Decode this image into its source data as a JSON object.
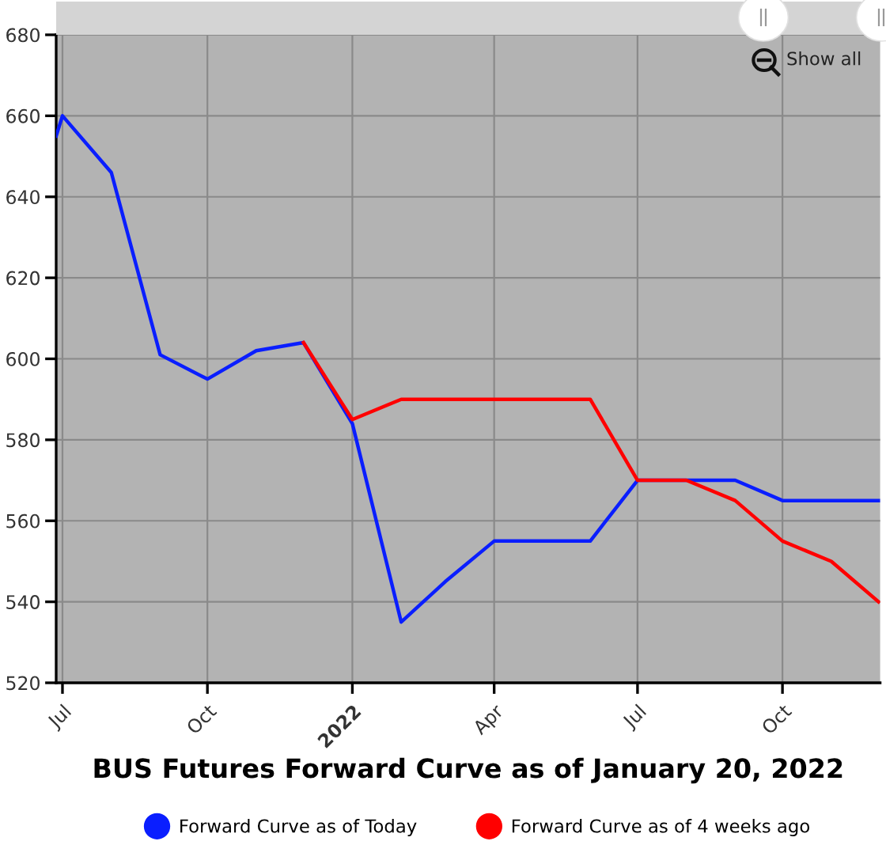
{
  "chart_data": {
    "type": "line",
    "title": "BUS Futures Forward Curve as of January 20, 2022",
    "annotations": [
      "Show all"
    ],
    "series": [
      {
        "name": "Forward Curve as of Today",
        "color": "#0a1eff",
        "x": [
          "2021-06-27",
          "2021-07-01",
          "2021-08-01",
          "2021-09-01",
          "2021-10-01",
          "2021-11-01",
          "2021-12-01",
          "2022-01-01",
          "2022-02-01",
          "2022-03-01",
          "2022-04-01",
          "2022-05-01",
          "2022-06-01",
          "2022-07-01",
          "2022-08-01",
          "2022-09-01",
          "2022-10-01",
          "2022-11-01",
          "2022-12-01"
        ],
        "values": [
          655,
          660,
          646,
          601,
          595,
          602,
          604,
          584,
          535,
          545,
          555,
          555,
          555,
          570,
          570,
          570,
          565,
          565,
          565
        ]
      },
      {
        "name": "Forward Curve as of 4 weeks ago",
        "color": "#ff0000",
        "x": [
          "2021-12-01",
          "2022-01-01",
          "2022-02-01",
          "2022-03-01",
          "2022-04-01",
          "2022-05-01",
          "2022-06-01",
          "2022-07-01",
          "2022-08-01",
          "2022-09-01",
          "2022-10-01",
          "2022-11-01",
          "2022-12-01"
        ],
        "values": [
          604,
          585,
          590,
          590,
          590,
          590,
          590,
          570,
          570,
          565,
          555,
          550,
          540
        ]
      }
    ],
    "xlim": [
      "2021-06-27",
      "2022-12-02"
    ],
    "ylim": [
      520,
      680
    ],
    "xticks": [
      {
        "value": "2021-07-01",
        "label": "Jul"
      },
      {
        "value": "2021-10-01",
        "label": "Oct"
      },
      {
        "value": "2022-01-01",
        "label": "2022"
      },
      {
        "value": "2022-04-01",
        "label": "Apr"
      },
      {
        "value": "2022-07-01",
        "label": "Jul"
      },
      {
        "value": "2022-10-01",
        "label": "Oct"
      }
    ],
    "yticks": [
      520,
      540,
      560,
      580,
      600,
      620,
      640,
      660,
      680
    ],
    "grid": true,
    "legend": "bottom"
  }
}
